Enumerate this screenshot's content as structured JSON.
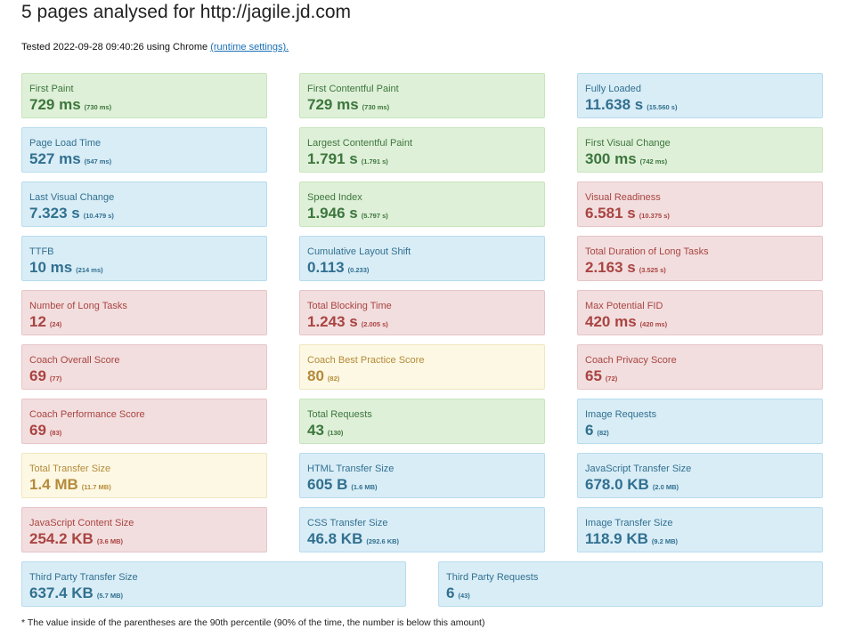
{
  "header": {
    "title": "5 pages analysed for http://jagile.jd.com",
    "tested_prefix": "Tested 2022-09-28 09:40:26 using Chrome ",
    "runtime_link": "(runtime settings)."
  },
  "status_colors": {
    "green": "#3c763d",
    "blue": "#31708f",
    "red": "#a94442",
    "yellow": "#b58a3a"
  },
  "metrics": [
    {
      "label": "First Paint",
      "value": "729 ms",
      "p90": "(730 ms)",
      "status": "green"
    },
    {
      "label": "First Contentful Paint",
      "value": "729 ms",
      "p90": "(730 ms)",
      "status": "green"
    },
    {
      "label": "Fully Loaded",
      "value": "11.638 s",
      "p90": "(15.560 s)",
      "status": "blue"
    },
    {
      "label": "Page Load Time",
      "value": "527 ms",
      "p90": "(547 ms)",
      "status": "blue"
    },
    {
      "label": "Largest Contentful Paint",
      "value": "1.791 s",
      "p90": "(1.791 s)",
      "status": "green"
    },
    {
      "label": "First Visual Change",
      "value": "300 ms",
      "p90": "(742 ms)",
      "status": "green"
    },
    {
      "label": "Last Visual Change",
      "value": "7.323 s",
      "p90": "(10.479 s)",
      "status": "blue"
    },
    {
      "label": "Speed Index",
      "value": "1.946 s",
      "p90": "(5.797 s)",
      "status": "green"
    },
    {
      "label": "Visual Readiness",
      "value": "6.581 s",
      "p90": "(10.375 s)",
      "status": "red"
    },
    {
      "label": "TTFB",
      "value": "10 ms",
      "p90": "(214 ms)",
      "status": "blue"
    },
    {
      "label": "Cumulative Layout Shift",
      "value": "0.113",
      "p90": "(0.233)",
      "status": "blue"
    },
    {
      "label": "Total Duration of Long Tasks",
      "value": "2.163 s",
      "p90": "(3.525 s)",
      "status": "red"
    },
    {
      "label": "Number of Long Tasks",
      "value": "12",
      "p90": "(24)",
      "status": "red"
    },
    {
      "label": "Total Blocking Time",
      "value": "1.243 s",
      "p90": "(2.005 s)",
      "status": "red"
    },
    {
      "label": "Max Potential FID",
      "value": "420 ms",
      "p90": "(420 ms)",
      "status": "red"
    },
    {
      "label": "Coach Overall Score",
      "value": "69",
      "p90": "(77)",
      "status": "red"
    },
    {
      "label": "Coach Best Practice Score",
      "value": "80",
      "p90": "(82)",
      "status": "yellow"
    },
    {
      "label": "Coach Privacy Score",
      "value": "65",
      "p90": "(72)",
      "status": "red"
    },
    {
      "label": "Coach Performance Score",
      "value": "69",
      "p90": "(83)",
      "status": "red"
    },
    {
      "label": "Total Requests",
      "value": "43",
      "p90": "(130)",
      "status": "green"
    },
    {
      "label": "Image Requests",
      "value": "6",
      "p90": "(82)",
      "status": "blue"
    },
    {
      "label": "Total Transfer Size",
      "value": "1.4 MB",
      "p90": "(11.7 MB)",
      "status": "yellow"
    },
    {
      "label": "HTML Transfer Size",
      "value": "605 B",
      "p90": "(1.6 MB)",
      "status": "blue"
    },
    {
      "label": "JavaScript Transfer Size",
      "value": "678.0 KB",
      "p90": "(2.0 MB)",
      "status": "blue"
    },
    {
      "label": "JavaScript Content Size",
      "value": "254.2 KB",
      "p90": "(3.6 MB)",
      "status": "red"
    },
    {
      "label": "CSS Transfer Size",
      "value": "46.8 KB",
      "p90": "(292.6 KB)",
      "status": "blue"
    },
    {
      "label": "Image Transfer Size",
      "value": "118.9 KB",
      "p90": "(9.2 MB)",
      "status": "blue"
    },
    {
      "label": "Third Party Transfer Size",
      "value": "637.4 KB",
      "p90": "(5.7 MB)",
      "status": "blue"
    },
    {
      "label": "Third Party Requests",
      "value": "6",
      "p90": "(43)",
      "status": "blue"
    }
  ],
  "footnote": "* The value inside of the parentheses are the 90th percentile (90% of the time, the number is below this amount)"
}
